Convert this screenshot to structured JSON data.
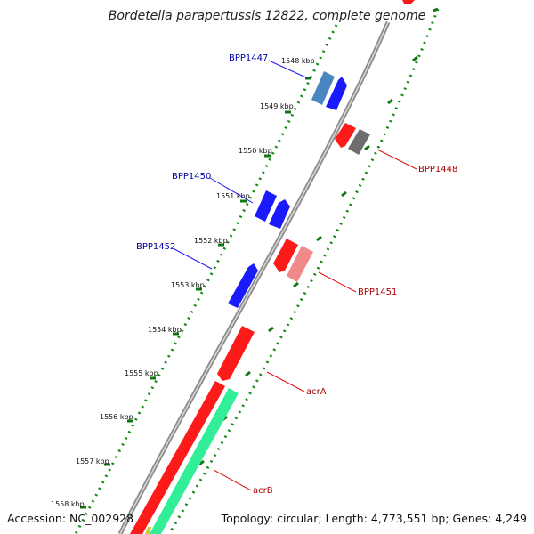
{
  "title": "Bordetella parapertussis 12822, complete genome",
  "accession": "Accession: NC_002928",
  "topology": "Topology: circular; Length: 4,773,551 bp; Genes: 4,249",
  "kbp_ticks": [
    "1548 kbp",
    "1549 kbp",
    "1550 kbp",
    "1551 kbp",
    "1552 kbp",
    "1553 kbp",
    "1554 kbp",
    "1555 kbp",
    "1556 kbp",
    "1557 kbp",
    "1558 kbp"
  ],
  "gene_labels": {
    "forward": [
      "BPP1447",
      "BPP1450",
      "BPP1452"
    ],
    "reverse": [
      "BPP1448",
      "BPP1451",
      "acrA",
      "acrB"
    ]
  },
  "colors": {
    "forward_strand": "#1a1aff",
    "forward_alt": "#4a86c0",
    "reverse_strand": "#ff1a1a",
    "reverse_pink": "#f08a8a",
    "reverse_grey": "#6e6e6e",
    "acrB_green": "#33ee99",
    "backbone": "#888888",
    "ruler_dots": "#118811"
  }
}
